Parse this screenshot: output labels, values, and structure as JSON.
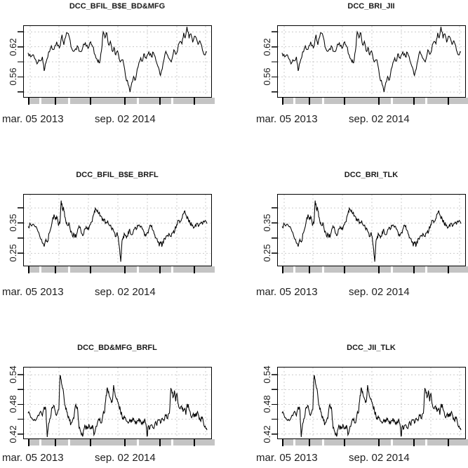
{
  "figure": {
    "background": "#ffffff",
    "line_color": "#000000",
    "grid_color": "#cccccc",
    "band_color": "#c4c4c4",
    "text_color": "#1f1f1f"
  },
  "chart_data": [
    {
      "type": "line",
      "title": "DCC_BFIL_B$E_BD&MFG",
      "series": "row1",
      "ylim": [
        0.52,
        0.663
      ],
      "yticks": [
        0.53,
        0.56,
        0.59,
        0.62,
        0.65
      ],
      "ylabels": [
        {
          "text": "0.62",
          "value": 0.62
        },
        {
          "text": "0.56",
          "value": 0.56
        }
      ],
      "xlabels": [
        {
          "text": "mar. 05 2013"
        },
        {
          "text": "sep. 02 2014"
        }
      ],
      "grid": true,
      "legend": "none"
    },
    {
      "type": "line",
      "title": "DCC_BRI_JII",
      "series": "row1",
      "ylim": [
        0.52,
        0.663
      ],
      "yticks": [
        0.53,
        0.56,
        0.59,
        0.62,
        0.65
      ],
      "ylabels": [
        {
          "text": "0.62",
          "value": 0.62
        },
        {
          "text": "0.56",
          "value": 0.56
        }
      ],
      "xlabels": [
        {
          "text": "mar. 05 2013"
        },
        {
          "text": "sep. 02 2014"
        }
      ],
      "grid": true,
      "legend": "none"
    },
    {
      "type": "line",
      "title": "DCC_BFIL_B$E_BRFL",
      "series": "row2",
      "ylim": [
        0.209,
        0.446
      ],
      "yticks": [
        0.25,
        0.3,
        0.35,
        0.4
      ],
      "ylabels": [
        {
          "text": "0.35",
          "value": 0.35
        },
        {
          "text": "0.25",
          "value": 0.25
        }
      ],
      "xlabels": [
        {
          "text": "mar. 05 2013"
        },
        {
          "text": "sep. 02 2014"
        }
      ],
      "grid": true,
      "legend": "none"
    },
    {
      "type": "line",
      "title": "DCC_BRI_TLK",
      "series": "row2",
      "ylim": [
        0.209,
        0.446
      ],
      "yticks": [
        0.25,
        0.3,
        0.35,
        0.4
      ],
      "ylabels": [
        {
          "text": "0.35",
          "value": 0.35
        },
        {
          "text": "0.25",
          "value": 0.25
        }
      ],
      "xlabels": [
        {
          "text": "mar. 05 2013"
        },
        {
          "text": "sep. 02 2014"
        }
      ],
      "grid": true,
      "legend": "none"
    },
    {
      "type": "line",
      "title": "DCC_BD&MFG_BRFL",
      "series": "row3",
      "ylim": [
        0.411,
        0.556
      ],
      "yticks": [
        0.42,
        0.45,
        0.48,
        0.51,
        0.54
      ],
      "ylabels": [
        {
          "text": "0.54",
          "value": 0.54
        },
        {
          "text": "0.48",
          "value": 0.48
        },
        {
          "text": "0.42",
          "value": 0.42
        }
      ],
      "xlabels": [
        {
          "text": "mar. 05 2013"
        },
        {
          "text": "sep. 02 2014"
        }
      ],
      "grid": true,
      "legend": "none"
    },
    {
      "type": "line",
      "title": "DCC_JII_TLK",
      "series": "row3",
      "ylim": [
        0.411,
        0.556
      ],
      "yticks": [
        0.42,
        0.45,
        0.48,
        0.51,
        0.54
      ],
      "ylabels": [
        {
          "text": "0.54",
          "value": 0.54
        },
        {
          "text": "0.48",
          "value": 0.48
        },
        {
          "text": "0.42",
          "value": 0.42
        }
      ],
      "xlabels": [
        {
          "text": "mar. 05 2013"
        },
        {
          "text": "sep. 02 2014"
        }
      ],
      "grid": true,
      "legend": "none"
    }
  ],
  "series_data": {
    "row1": {
      "noise": 0.0045,
      "seed": 101,
      "points": [
        [
          0,
          0.608
        ],
        [
          0.015,
          0.6
        ],
        [
          0.03,
          0.604
        ],
        [
          0.05,
          0.586
        ],
        [
          0.065,
          0.592
        ],
        [
          0.08,
          0.6
        ],
        [
          0.09,
          0.572
        ],
        [
          0.1,
          0.588
        ],
        [
          0.115,
          0.61
        ],
        [
          0.13,
          0.622
        ],
        [
          0.145,
          0.615
        ],
        [
          0.16,
          0.63
        ],
        [
          0.175,
          0.618
        ],
        [
          0.19,
          0.644
        ],
        [
          0.2,
          0.624
        ],
        [
          0.215,
          0.648
        ],
        [
          0.23,
          0.64
        ],
        [
          0.245,
          0.616
        ],
        [
          0.26,
          0.613
        ],
        [
          0.275,
          0.622
        ],
        [
          0.29,
          0.611
        ],
        [
          0.305,
          0.618
        ],
        [
          0.32,
          0.628
        ],
        [
          0.335,
          0.617
        ],
        [
          0.35,
          0.63
        ],
        [
          0.36,
          0.621
        ],
        [
          0.375,
          0.604
        ],
        [
          0.39,
          0.59
        ],
        [
          0.4,
          0.588
        ],
        [
          0.41,
          0.612
        ],
        [
          0.42,
          0.65
        ],
        [
          0.43,
          0.638
        ],
        [
          0.44,
          0.648
        ],
        [
          0.45,
          0.624
        ],
        [
          0.46,
          0.631
        ],
        [
          0.47,
          0.612
        ],
        [
          0.48,
          0.619
        ],
        [
          0.49,
          0.604
        ],
        [
          0.5,
          0.612
        ],
        [
          0.515,
          0.59
        ],
        [
          0.53,
          0.594
        ],
        [
          0.545,
          0.561
        ],
        [
          0.56,
          0.544
        ],
        [
          0.57,
          0.53
        ],
        [
          0.58,
          0.549
        ],
        [
          0.59,
          0.561
        ],
        [
          0.6,
          0.554
        ],
        [
          0.615,
          0.58
        ],
        [
          0.63,
          0.598
        ],
        [
          0.64,
          0.592
        ],
        [
          0.65,
          0.606
        ],
        [
          0.66,
          0.597
        ],
        [
          0.675,
          0.61
        ],
        [
          0.69,
          0.6
        ],
        [
          0.7,
          0.609
        ],
        [
          0.715,
          0.592
        ],
        [
          0.73,
          0.578
        ],
        [
          0.74,
          0.563
        ],
        [
          0.755,
          0.588
        ],
        [
          0.77,
          0.611
        ],
        [
          0.785,
          0.598
        ],
        [
          0.8,
          0.59
        ],
        [
          0.815,
          0.614
        ],
        [
          0.83,
          0.607
        ],
        [
          0.845,
          0.628
        ],
        [
          0.86,
          0.626
        ],
        [
          0.87,
          0.648
        ],
        [
          0.878,
          0.638
        ],
        [
          0.888,
          0.66
        ],
        [
          0.9,
          0.637
        ],
        [
          0.91,
          0.646
        ],
        [
          0.92,
          0.629
        ],
        [
          0.935,
          0.641
        ],
        [
          0.95,
          0.625
        ],
        [
          0.96,
          0.632
        ],
        [
          0.975,
          0.613
        ],
        [
          0.985,
          0.604
        ],
        [
          1,
          0.61
        ]
      ]
    },
    "row2": {
      "noise": 0.008,
      "seed": 202,
      "points": [
        [
          0,
          0.338
        ],
        [
          0.015,
          0.344
        ],
        [
          0.03,
          0.346
        ],
        [
          0.045,
          0.338
        ],
        [
          0.06,
          0.318
        ],
        [
          0.075,
          0.296
        ],
        [
          0.09,
          0.272
        ],
        [
          0.1,
          0.296
        ],
        [
          0.108,
          0.287
        ],
        [
          0.12,
          0.318
        ],
        [
          0.135,
          0.356
        ],
        [
          0.145,
          0.378
        ],
        [
          0.153,
          0.362
        ],
        [
          0.16,
          0.372
        ],
        [
          0.17,
          0.341
        ],
        [
          0.178,
          0.35
        ],
        [
          0.185,
          0.424
        ],
        [
          0.192,
          0.396
        ],
        [
          0.198,
          0.403
        ],
        [
          0.205,
          0.37
        ],
        [
          0.213,
          0.349
        ],
        [
          0.22,
          0.342
        ],
        [
          0.228,
          0.352
        ],
        [
          0.238,
          0.32
        ],
        [
          0.248,
          0.307
        ],
        [
          0.258,
          0.313
        ],
        [
          0.268,
          0.302
        ],
        [
          0.278,
          0.33
        ],
        [
          0.288,
          0.335
        ],
        [
          0.298,
          0.316
        ],
        [
          0.308,
          0.309
        ],
        [
          0.318,
          0.331
        ],
        [
          0.328,
          0.333
        ],
        [
          0.338,
          0.327
        ],
        [
          0.348,
          0.344
        ],
        [
          0.358,
          0.354
        ],
        [
          0.368,
          0.38
        ],
        [
          0.376,
          0.399
        ],
        [
          0.385,
          0.388
        ],
        [
          0.395,
          0.381
        ],
        [
          0.405,
          0.374
        ],
        [
          0.415,
          0.357
        ],
        [
          0.425,
          0.363
        ],
        [
          0.435,
          0.352
        ],
        [
          0.445,
          0.358
        ],
        [
          0.455,
          0.341
        ],
        [
          0.465,
          0.334
        ],
        [
          0.475,
          0.33
        ],
        [
          0.485,
          0.316
        ],
        [
          0.492,
          0.306
        ],
        [
          0.498,
          0.318
        ],
        [
          0.505,
          0.296
        ],
        [
          0.512,
          0.262
        ],
        [
          0.518,
          0.222
        ],
        [
          0.525,
          0.29
        ],
        [
          0.532,
          0.304
        ],
        [
          0.54,
          0.313
        ],
        [
          0.55,
          0.301
        ],
        [
          0.56,
          0.32
        ],
        [
          0.568,
          0.329
        ],
        [
          0.578,
          0.311
        ],
        [
          0.588,
          0.322
        ],
        [
          0.598,
          0.336
        ],
        [
          0.608,
          0.331
        ],
        [
          0.618,
          0.343
        ],
        [
          0.628,
          0.336
        ],
        [
          0.638,
          0.33
        ],
        [
          0.648,
          0.32
        ],
        [
          0.658,
          0.307
        ],
        [
          0.668,
          0.319
        ],
        [
          0.678,
          0.333
        ],
        [
          0.688,
          0.338
        ],
        [
          0.698,
          0.326
        ],
        [
          0.708,
          0.311
        ],
        [
          0.718,
          0.299
        ],
        [
          0.726,
          0.286
        ],
        [
          0.733,
          0.273
        ],
        [
          0.742,
          0.283
        ],
        [
          0.75,
          0.277
        ],
        [
          0.76,
          0.299
        ],
        [
          0.77,
          0.303
        ],
        [
          0.78,
          0.309
        ],
        [
          0.79,
          0.313
        ],
        [
          0.8,
          0.305
        ],
        [
          0.81,
          0.319
        ],
        [
          0.82,
          0.324
        ],
        [
          0.83,
          0.344
        ],
        [
          0.84,
          0.358
        ],
        [
          0.848,
          0.351
        ],
        [
          0.858,
          0.363
        ],
        [
          0.868,
          0.38
        ],
        [
          0.876,
          0.39
        ],
        [
          0.885,
          0.372
        ],
        [
          0.895,
          0.364
        ],
        [
          0.905,
          0.351
        ],
        [
          0.915,
          0.341
        ],
        [
          0.925,
          0.333
        ],
        [
          0.935,
          0.344
        ],
        [
          0.945,
          0.349
        ],
        [
          0.955,
          0.341
        ],
        [
          0.965,
          0.349
        ],
        [
          0.975,
          0.345
        ],
        [
          0.985,
          0.353
        ],
        [
          1,
          0.348
        ]
      ]
    },
    "row3": {
      "noise": 0.0055,
      "seed": 303,
      "points": [
        [
          0,
          0.462
        ],
        [
          0.012,
          0.457
        ],
        [
          0.025,
          0.45
        ],
        [
          0.04,
          0.447
        ],
        [
          0.055,
          0.458
        ],
        [
          0.07,
          0.466
        ],
        [
          0.08,
          0.457
        ],
        [
          0.09,
          0.475
        ],
        [
          0.1,
          0.468
        ],
        [
          0.107,
          0.414
        ],
        [
          0.115,
          0.441
        ],
        [
          0.125,
          0.452
        ],
        [
          0.135,
          0.474
        ],
        [
          0.143,
          0.478
        ],
        [
          0.152,
          0.466
        ],
        [
          0.162,
          0.461
        ],
        [
          0.172,
          0.47
        ],
        [
          0.179,
          0.539
        ],
        [
          0.185,
          0.53
        ],
        [
          0.192,
          0.513
        ],
        [
          0.2,
          0.497
        ],
        [
          0.208,
          0.477
        ],
        [
          0.216,
          0.465
        ],
        [
          0.224,
          0.453
        ],
        [
          0.232,
          0.446
        ],
        [
          0.24,
          0.441
        ],
        [
          0.248,
          0.447
        ],
        [
          0.256,
          0.452
        ],
        [
          0.264,
          0.477
        ],
        [
          0.272,
          0.472
        ],
        [
          0.278,
          0.466
        ],
        [
          0.285,
          0.432
        ],
        [
          0.295,
          0.424
        ],
        [
          0.305,
          0.415
        ],
        [
          0.312,
          0.429
        ],
        [
          0.32,
          0.436
        ],
        [
          0.33,
          0.43
        ],
        [
          0.34,
          0.44
        ],
        [
          0.35,
          0.431
        ],
        [
          0.36,
          0.438
        ],
        [
          0.368,
          0.418
        ],
        [
          0.376,
          0.428
        ],
        [
          0.388,
          0.443
        ],
        [
          0.398,
          0.448
        ],
        [
          0.408,
          0.442
        ],
        [
          0.418,
          0.458
        ],
        [
          0.428,
          0.464
        ],
        [
          0.436,
          0.498
        ],
        [
          0.443,
          0.514
        ],
        [
          0.45,
          0.506
        ],
        [
          0.458,
          0.494
        ],
        [
          0.466,
          0.483
        ],
        [
          0.472,
          0.489
        ],
        [
          0.478,
          0.519
        ],
        [
          0.485,
          0.504
        ],
        [
          0.492,
          0.493
        ],
        [
          0.5,
          0.486
        ],
        [
          0.508,
          0.477
        ],
        [
          0.516,
          0.468
        ],
        [
          0.525,
          0.457
        ],
        [
          0.533,
          0.449
        ],
        [
          0.54,
          0.453
        ],
        [
          0.55,
          0.446
        ],
        [
          0.56,
          0.442
        ],
        [
          0.568,
          0.449
        ],
        [
          0.576,
          0.443
        ],
        [
          0.585,
          0.452
        ],
        [
          0.593,
          0.446
        ],
        [
          0.6,
          0.44
        ],
        [
          0.61,
          0.447
        ],
        [
          0.62,
          0.452
        ],
        [
          0.63,
          0.446
        ],
        [
          0.64,
          0.44
        ],
        [
          0.65,
          0.448
        ],
        [
          0.658,
          0.441
        ],
        [
          0.665,
          0.415
        ],
        [
          0.672,
          0.437
        ],
        [
          0.68,
          0.43
        ],
        [
          0.69,
          0.439
        ],
        [
          0.7,
          0.432
        ],
        [
          0.71,
          0.443
        ],
        [
          0.72,
          0.437
        ],
        [
          0.73,
          0.448
        ],
        [
          0.74,
          0.442
        ],
        [
          0.75,
          0.452
        ],
        [
          0.76,
          0.447
        ],
        [
          0.77,
          0.457
        ],
        [
          0.78,
          0.451
        ],
        [
          0.79,
          0.462
        ],
        [
          0.798,
          0.513
        ],
        [
          0.805,
          0.502
        ],
        [
          0.812,
          0.496
        ],
        [
          0.818,
          0.508
        ],
        [
          0.825,
          0.486
        ],
        [
          0.832,
          0.502
        ],
        [
          0.84,
          0.479
        ],
        [
          0.85,
          0.471
        ],
        [
          0.858,
          0.477
        ],
        [
          0.866,
          0.466
        ],
        [
          0.874,
          0.47
        ],
        [
          0.882,
          0.459
        ],
        [
          0.89,
          0.481
        ],
        [
          0.898,
          0.473
        ],
        [
          0.906,
          0.465
        ],
        [
          0.914,
          0.453
        ],
        [
          0.924,
          0.462
        ],
        [
          0.934,
          0.455
        ],
        [
          0.944,
          0.463
        ],
        [
          0.954,
          0.457
        ],
        [
          0.962,
          0.448
        ],
        [
          0.972,
          0.452
        ],
        [
          0.98,
          0.444
        ],
        [
          0.99,
          0.436
        ],
        [
          1,
          0.428
        ]
      ]
    }
  }
}
